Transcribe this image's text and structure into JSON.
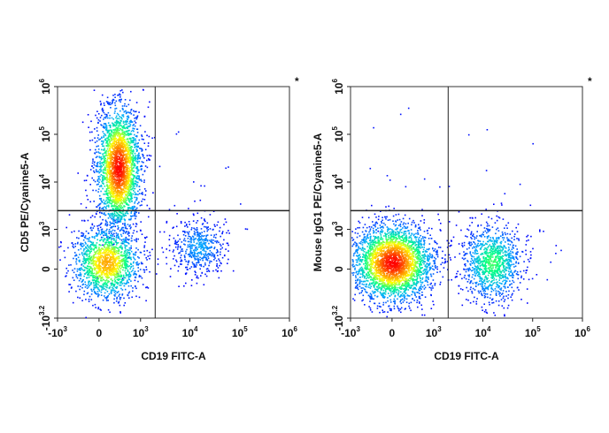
{
  "chart_data": [
    {
      "type": "scatter",
      "subtype": "flow-cytometry-density-dot-plot",
      "xlabel": "CD19 FITC-A",
      "ylabel": "CD5 PE/Cyanine5-A",
      "x_scale": "biexponential",
      "y_scale": "biexponential",
      "xlim": [
        -1000,
        1000000
      ],
      "ylim": [
        -1585,
        1000000
      ],
      "x_ticks": [
        {
          "value": -1000,
          "base": "-10",
          "exp": "3"
        },
        {
          "value": 0,
          "base": "0",
          "exp": ""
        },
        {
          "value": 1000,
          "base": "10",
          "exp": "3"
        },
        {
          "value": 10000,
          "base": "10",
          "exp": "4"
        },
        {
          "value": 100000,
          "base": "10",
          "exp": "5"
        },
        {
          "value": 1000000,
          "base": "10",
          "exp": "6"
        }
      ],
      "y_ticks": [
        {
          "value": -1585,
          "base": "-10",
          "exp": "3.2"
        },
        {
          "value": 0,
          "base": "0",
          "exp": ""
        },
        {
          "value": 1000,
          "base": "10",
          "exp": "3"
        },
        {
          "value": 10000,
          "base": "10",
          "exp": "4"
        },
        {
          "value": 100000,
          "base": "10",
          "exp": "5"
        },
        {
          "value": 1000000,
          "base": "10",
          "exp": "6"
        }
      ],
      "quadrant_gate": {
        "x": 2000,
        "y": 2500
      },
      "corner_mark": "*",
      "colormap": [
        "#0000ff",
        "#00aaff",
        "#00ff88",
        "#ffff00",
        "#ff8800",
        "#ff0000"
      ],
      "populations": [
        {
          "x_center": 300,
          "y_center": 20000,
          "x_spread": 260,
          "y_spread": 0.28,
          "count": 2600,
          "density_peak": 1.0
        },
        {
          "x_center": 100,
          "y_center": 100,
          "x_spread": 300,
          "y_spread": 350,
          "count": 1500,
          "density_peak": 0.75
        },
        {
          "x_center": 15000,
          "y_center": 400,
          "x_spread": 0.12,
          "y_spread": 450,
          "count": 500,
          "density_peak": 0.2
        }
      ]
    },
    {
      "type": "scatter",
      "subtype": "flow-cytometry-density-dot-plot",
      "xlabel": "CD19 FITC-A",
      "ylabel": "Mouse IgG1 PE/Cyanine5-A",
      "x_scale": "biexponential",
      "y_scale": "biexponential",
      "xlim": [
        -1000,
        1000000
      ],
      "ylim": [
        -1585,
        1000000
      ],
      "x_ticks": [
        {
          "value": -1000,
          "base": "-10",
          "exp": "3"
        },
        {
          "value": 0,
          "base": "0",
          "exp": ""
        },
        {
          "value": 1000,
          "base": "10",
          "exp": "3"
        },
        {
          "value": 10000,
          "base": "10",
          "exp": "4"
        },
        {
          "value": 100000,
          "base": "10",
          "exp": "5"
        },
        {
          "value": 1000000,
          "base": "10",
          "exp": "6"
        }
      ],
      "y_ticks": [
        {
          "value": -1585,
          "base": "-10",
          "exp": "3.2"
        },
        {
          "value": 0,
          "base": "0",
          "exp": ""
        },
        {
          "value": 1000,
          "base": "10",
          "exp": "3"
        },
        {
          "value": 10000,
          "base": "10",
          "exp": "4"
        },
        {
          "value": 100000,
          "base": "10",
          "exp": "5"
        },
        {
          "value": 1000000,
          "base": "10",
          "exp": "6"
        }
      ],
      "quadrant_gate": {
        "x": 2000,
        "y": 2500
      },
      "corner_mark": "*",
      "colormap": [
        "#0000ff",
        "#00aaff",
        "#00ff88",
        "#ffff00",
        "#ff8800",
        "#ff0000"
      ],
      "populations": [
        {
          "x_center": 0,
          "y_center": 100,
          "x_spread": 320,
          "y_spread": 380,
          "count": 3000,
          "density_peak": 1.0
        },
        {
          "x_center": 15000,
          "y_center": 100,
          "x_spread": 0.13,
          "y_spread": 380,
          "count": 1100,
          "density_peak": 0.45
        }
      ]
    }
  ]
}
